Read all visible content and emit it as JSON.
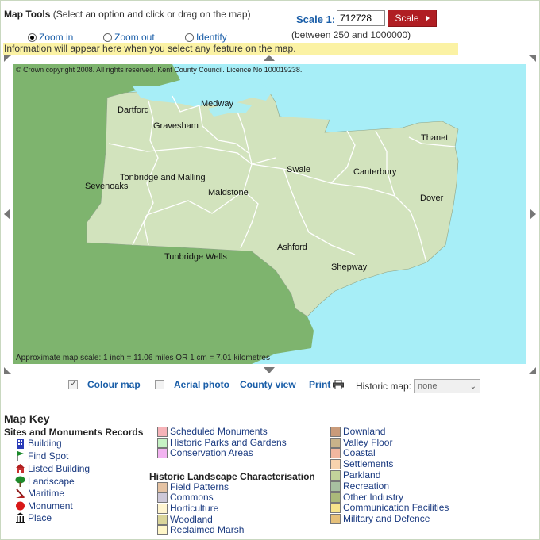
{
  "tools": {
    "title": "Map Tools",
    "hint": "(Select an option and click or drag on the map)",
    "options": [
      {
        "label": "Zoom in",
        "selected": true
      },
      {
        "label": "Zoom out",
        "selected": false
      },
      {
        "label": "Identify",
        "selected": false
      }
    ],
    "info_text": "Information will appear here when you select any feature on the map."
  },
  "scale": {
    "label": "Scale 1:",
    "value": "712728",
    "button_label": "Scale",
    "range_text": "(between 250 and 1000000)"
  },
  "map": {
    "copyright": "© Crown copyright 2008. All rights reserved. Kent County Council. Licence No 100019238.",
    "scale_note": "Approximate map scale: 1 inch = 11.06 miles OR 1 cm = 7.01 kilometres",
    "towns": [
      "Dartford",
      "Medway",
      "Gravesham",
      "Thanet",
      "Swale",
      "Canterbury",
      "Tonbridge and Malling",
      "Sevenoaks",
      "Maidstone",
      "Dover",
      "Ashford",
      "Tunbridge Wells",
      "Shepway"
    ],
    "colors": {
      "sea": "#a7eef7",
      "land_outside": "#7eb46e",
      "county": "#d2e3bd",
      "border": "#ffffff"
    }
  },
  "view_options": {
    "colour_map": {
      "label": "Colour map",
      "checked": true
    },
    "aerial_photo": {
      "label": "Aerial photo",
      "checked": false
    },
    "county_view": "County view",
    "print": "Print",
    "historic_label": "Historic map:",
    "historic_value": "none"
  },
  "key": {
    "title": "Map Key",
    "sites_title": "Sites and Monuments Records",
    "sites": [
      {
        "label": "Building",
        "icon": "building-icon"
      },
      {
        "label": "Find Spot",
        "icon": "flag-icon"
      },
      {
        "label": "Listed Building",
        "icon": "listed-building-icon"
      },
      {
        "label": "Landscape",
        "icon": "tree-icon"
      },
      {
        "label": "Maritime",
        "icon": "ship-icon"
      },
      {
        "label": "Monument",
        "icon": "monument-icon"
      },
      {
        "label": "Place",
        "icon": "temple-icon"
      }
    ],
    "designations": [
      {
        "label": "Scheduled Monuments",
        "color": "#f6b3b8"
      },
      {
        "label": "Historic Parks and Gardens",
        "color": "#c6f2c4"
      },
      {
        "label": "Conservation Areas",
        "color": "#f2b3f0"
      }
    ],
    "hlc_title": "Historic Landscape Characterisation",
    "hlc_left": [
      {
        "label": "Field Patterns",
        "color": "#e5c3a3"
      },
      {
        "label": "Commons",
        "color": "#cdc8d8"
      },
      {
        "label": "Horticulture",
        "color": "#fff5d0"
      },
      {
        "label": "Woodland",
        "color": "#dad59a"
      },
      {
        "label": "Reclaimed Marsh",
        "color": "#fff6c8"
      }
    ],
    "hlc_right": [
      {
        "label": "Downland",
        "color": "#c99b7a"
      },
      {
        "label": "Valley Floor",
        "color": "#c8b38a"
      },
      {
        "label": "Coastal",
        "color": "#f2b7a0"
      },
      {
        "label": "Settlements",
        "color": "#f8d3ae"
      },
      {
        "label": "Parkland",
        "color": "#c3d39a"
      },
      {
        "label": "Recreation",
        "color": "#a7c0a0"
      },
      {
        "label": "Other Industry",
        "color": "#aab97a"
      },
      {
        "label": "Communication Facilities",
        "color": "#f6e48c"
      },
      {
        "label": "Military and Defence",
        "color": "#e5c07a"
      }
    ]
  }
}
